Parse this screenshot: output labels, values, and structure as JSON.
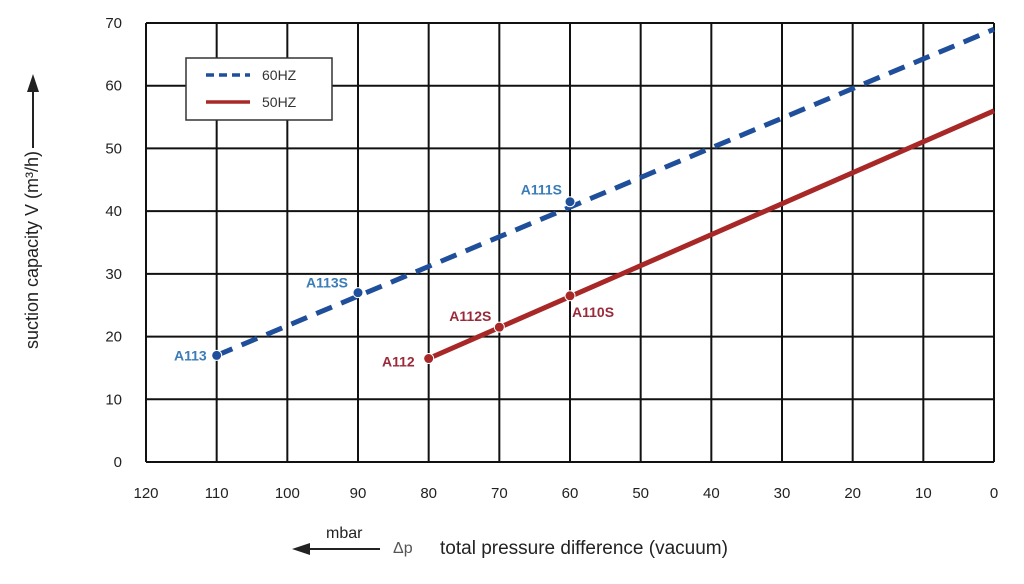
{
  "chart_data": {
    "type": "line",
    "title": "",
    "xlabel_symbol": "Δp",
    "xlabel": "total pressure difference (vacuum)",
    "x_unit": "mbar",
    "ylabel": "suction capacity V (m³/h)",
    "xlim": [
      120,
      0
    ],
    "ylim": [
      0,
      70
    ],
    "x_reversed": true,
    "grid": true,
    "legend_position": "top-left",
    "x_ticks": [
      120,
      110,
      100,
      90,
      80,
      70,
      60,
      50,
      40,
      30,
      20,
      10,
      0
    ],
    "y_ticks": [
      0,
      10,
      20,
      30,
      40,
      50,
      60,
      70
    ],
    "series": [
      {
        "name": "60HZ",
        "color": "#1f4e9a",
        "style": "dashed",
        "x": [
          110,
          0
        ],
        "y": [
          17,
          69
        ],
        "points": [
          {
            "label": "A113",
            "x": 110,
            "y": 17
          },
          {
            "label": "A113S",
            "x": 90,
            "y": 27
          },
          {
            "label": "A111S",
            "x": 60,
            "y": 41.5
          }
        ]
      },
      {
        "name": "50HZ",
        "color": "#a82828",
        "style": "solid",
        "x": [
          80,
          0
        ],
        "y": [
          16.5,
          56
        ],
        "points": [
          {
            "label": "A112",
            "x": 80,
            "y": 16.5
          },
          {
            "label": "A112S",
            "x": 70,
            "y": 21.5
          },
          {
            "label": "A110S",
            "x": 60,
            "y": 26.5
          }
        ]
      }
    ],
    "annotation_colors": {
      "60HZ": "#3a7cb8",
      "50HZ": "#9a2a3a"
    }
  }
}
